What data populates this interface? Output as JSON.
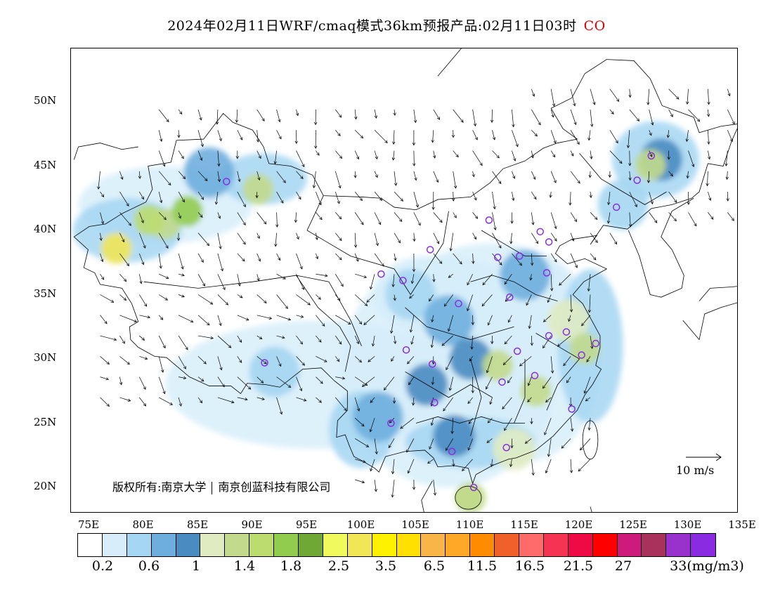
{
  "title": {
    "text": "2024年02月11日WRF/cmaq模式36km预报产品:02月11日03时",
    "species": "CO"
  },
  "lat_labels": [
    "50N",
    "45N",
    "40N",
    "35N",
    "30N",
    "25N",
    "20N"
  ],
  "lon_labels": [
    "75E",
    "80E",
    "85E",
    "90E",
    "95E",
    "100E",
    "105E",
    "110E",
    "115E",
    "120E",
    "125E",
    "130E",
    "135E"
  ],
  "copyright": {
    "part1": "版权所有:南京大学",
    "part2": "南京创蓝科技有限公司"
  },
  "wind_key": {
    "label": "10 m/s"
  },
  "colorbar": {
    "colors": [
      "#ffffff",
      "#d7eefa",
      "#a5d6f2",
      "#6eaede",
      "#4a8cc2",
      "#e0ebc2",
      "#c2da8c",
      "#bcdc70",
      "#92cc4e",
      "#6fa835",
      "#f1fa5c",
      "#f1e656",
      "#fff200",
      "#ffe000",
      "#f9b548",
      "#ffa726",
      "#ff8c00",
      "#f0602a",
      "#ff6a6a",
      "#f53453",
      "#f00a45",
      "#ff0000",
      "#cd1a7c",
      "#a8325c",
      "#9932cc",
      "#8a2be2"
    ],
    "tick_labels": [
      "0.2",
      "0.6",
      "1",
      "1.4",
      "1.8",
      "2.5",
      "3.5",
      "6.5",
      "11.5",
      "16.5",
      "21.5",
      "27",
      "33(mg/m3)"
    ]
  },
  "chart_data": {
    "type": "heatmap",
    "title": "2024年02月11日WRF/cmaq模式36km预报产品:02月11日03时 CO",
    "xlabel": "",
    "ylabel": "",
    "xlim": [
      73.4,
      135
    ],
    "ylim": [
      18,
      54
    ],
    "units": "mg/m3",
    "levels": [
      0.2,
      0.6,
      1,
      1.4,
      1.8,
      2.5,
      3.5,
      6.5,
      11.5,
      16.5,
      21.5,
      27,
      33
    ],
    "concentration_regions": [
      {
        "lon": 82,
        "lat": 40.5,
        "value": 1.2
      },
      {
        "lon": 77.5,
        "lat": 38.6,
        "value": 2.7
      },
      {
        "lon": 80.5,
        "lat": 40.8,
        "value": 1.5
      },
      {
        "lon": 84,
        "lat": 41.5,
        "value": 1.6
      },
      {
        "lon": 90.5,
        "lat": 43.2,
        "value": 1.3
      },
      {
        "lon": 86,
        "lat": 44.5,
        "value": 0.6
      },
      {
        "lon": 104.5,
        "lat": 35,
        "value": 0.5
      },
      {
        "lon": 108,
        "lat": 33,
        "value": 0.6
      },
      {
        "lon": 110,
        "lat": 30,
        "value": 0.8
      },
      {
        "lon": 112.5,
        "lat": 29.5,
        "value": 1.3
      },
      {
        "lon": 116,
        "lat": 27.5,
        "value": 1.2
      },
      {
        "lon": 119,
        "lat": 33,
        "value": 1.1
      },
      {
        "lon": 120.5,
        "lat": 30.8,
        "value": 1.2
      },
      {
        "lon": 115,
        "lat": 36.5,
        "value": 0.7
      },
      {
        "lon": 106,
        "lat": 28,
        "value": 0.9
      },
      {
        "lon": 101.5,
        "lat": 25.5,
        "value": 0.6
      },
      {
        "lon": 108.5,
        "lat": 24,
        "value": 0.8
      },
      {
        "lon": 110,
        "lat": 19.2,
        "value": 1.3
      },
      {
        "lon": 114,
        "lat": 23,
        "value": 1.1
      },
      {
        "lon": 127.5,
        "lat": 45.5,
        "value": 0.8
      },
      {
        "lon": 126.5,
        "lat": 45.1,
        "value": 1.3
      },
      {
        "lon": 124,
        "lat": 42,
        "value": 0.5
      },
      {
        "lon": 92,
        "lat": 29,
        "value": 0.4
      }
    ],
    "city_markers": [
      {
        "lon": 87.6,
        "lat": 43.8
      },
      {
        "lon": 91.1,
        "lat": 29.7
      },
      {
        "lon": 101.8,
        "lat": 36.6
      },
      {
        "lon": 103.8,
        "lat": 36.1
      },
      {
        "lon": 106.3,
        "lat": 38.5
      },
      {
        "lon": 108.9,
        "lat": 34.3
      },
      {
        "lon": 111.7,
        "lat": 40.8
      },
      {
        "lon": 112.5,
        "lat": 37.9
      },
      {
        "lon": 114.5,
        "lat": 38.0
      },
      {
        "lon": 116.4,
        "lat": 39.9
      },
      {
        "lon": 117.2,
        "lat": 39.1
      },
      {
        "lon": 117.0,
        "lat": 36.7
      },
      {
        "lon": 113.6,
        "lat": 34.8
      },
      {
        "lon": 117.2,
        "lat": 31.8
      },
      {
        "lon": 118.8,
        "lat": 32.1
      },
      {
        "lon": 121.5,
        "lat": 31.2
      },
      {
        "lon": 120.2,
        "lat": 30.3
      },
      {
        "lon": 114.3,
        "lat": 30.6
      },
      {
        "lon": 112.9,
        "lat": 28.2
      },
      {
        "lon": 115.9,
        "lat": 28.7
      },
      {
        "lon": 119.3,
        "lat": 26.1
      },
      {
        "lon": 113.3,
        "lat": 23.1
      },
      {
        "lon": 108.3,
        "lat": 22.8
      },
      {
        "lon": 110.3,
        "lat": 20.0
      },
      {
        "lon": 102.7,
        "lat": 25.0
      },
      {
        "lon": 106.7,
        "lat": 26.6
      },
      {
        "lon": 106.5,
        "lat": 29.6
      },
      {
        "lon": 104.1,
        "lat": 30.7
      },
      {
        "lon": 123.4,
        "lat": 41.8
      },
      {
        "lon": 125.3,
        "lat": 43.9
      },
      {
        "lon": 126.6,
        "lat": 45.8
      }
    ]
  }
}
